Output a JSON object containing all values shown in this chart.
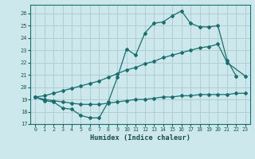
{
  "xlabel": "Humidex (Indice chaleur)",
  "bg_color": "#cce8ec",
  "grid_color": "#b0cdd1",
  "line_color": "#1a6e6e",
  "xlim": [
    -0.5,
    23.5
  ],
  "ylim": [
    17,
    26.7
  ],
  "yticks": [
    17,
    18,
    19,
    20,
    21,
    22,
    23,
    24,
    25,
    26
  ],
  "xticks": [
    0,
    1,
    2,
    3,
    4,
    5,
    6,
    7,
    8,
    9,
    10,
    11,
    12,
    13,
    14,
    15,
    16,
    17,
    18,
    19,
    20,
    21,
    22,
    23
  ],
  "line1_y": [
    19.2,
    18.9,
    18.8,
    18.3,
    18.2,
    17.7,
    17.5,
    17.5,
    18.8,
    20.8,
    23.1,
    22.6,
    24.4,
    25.2,
    25.3,
    25.8,
    26.2,
    25.2,
    24.9,
    24.9,
    25.0,
    22.2,
    20.9,
    null
  ],
  "line2_y": [
    19.2,
    19.3,
    19.5,
    19.7,
    19.9,
    20.1,
    20.3,
    20.5,
    20.8,
    21.1,
    21.4,
    21.6,
    21.9,
    22.1,
    22.4,
    22.6,
    22.8,
    23.0,
    23.2,
    23.3,
    23.5,
    22.0,
    null,
    20.9
  ],
  "line3_y": [
    19.2,
    19.0,
    18.9,
    18.8,
    18.7,
    18.6,
    18.6,
    18.6,
    18.7,
    18.8,
    18.9,
    19.0,
    19.0,
    19.1,
    19.2,
    19.2,
    19.3,
    19.3,
    19.4,
    19.4,
    19.4,
    19.4,
    19.5,
    19.5
  ]
}
